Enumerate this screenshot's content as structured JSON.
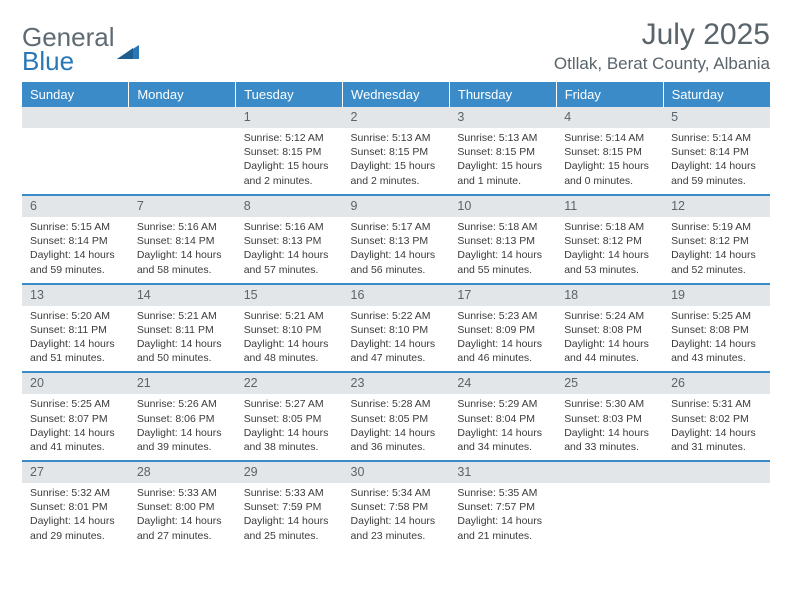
{
  "logo": {
    "line1": "General",
    "line2": "Blue"
  },
  "title": "July 2025",
  "location": "Otllak, Berat County, Albania",
  "colors": {
    "header_bg": "#3b8bc9",
    "header_text": "#ffffff",
    "daynum_bg": "#e3e6e8",
    "daynum_text": "#5a646b",
    "rule": "#3b8bc9",
    "logo_gray": "#5f6b72",
    "logo_blue": "#2a77b8"
  },
  "weekdays": [
    "Sunday",
    "Monday",
    "Tuesday",
    "Wednesday",
    "Thursday",
    "Friday",
    "Saturday"
  ],
  "weeks": [
    [
      null,
      null,
      {
        "n": "1",
        "sr": "Sunrise: 5:12 AM",
        "ss": "Sunset: 8:15 PM",
        "dl": "Daylight: 15 hours and 2 minutes."
      },
      {
        "n": "2",
        "sr": "Sunrise: 5:13 AM",
        "ss": "Sunset: 8:15 PM",
        "dl": "Daylight: 15 hours and 2 minutes."
      },
      {
        "n": "3",
        "sr": "Sunrise: 5:13 AM",
        "ss": "Sunset: 8:15 PM",
        "dl": "Daylight: 15 hours and 1 minute."
      },
      {
        "n": "4",
        "sr": "Sunrise: 5:14 AM",
        "ss": "Sunset: 8:15 PM",
        "dl": "Daylight: 15 hours and 0 minutes."
      },
      {
        "n": "5",
        "sr": "Sunrise: 5:14 AM",
        "ss": "Sunset: 8:14 PM",
        "dl": "Daylight: 14 hours and 59 minutes."
      }
    ],
    [
      {
        "n": "6",
        "sr": "Sunrise: 5:15 AM",
        "ss": "Sunset: 8:14 PM",
        "dl": "Daylight: 14 hours and 59 minutes."
      },
      {
        "n": "7",
        "sr": "Sunrise: 5:16 AM",
        "ss": "Sunset: 8:14 PM",
        "dl": "Daylight: 14 hours and 58 minutes."
      },
      {
        "n": "8",
        "sr": "Sunrise: 5:16 AM",
        "ss": "Sunset: 8:13 PM",
        "dl": "Daylight: 14 hours and 57 minutes."
      },
      {
        "n": "9",
        "sr": "Sunrise: 5:17 AM",
        "ss": "Sunset: 8:13 PM",
        "dl": "Daylight: 14 hours and 56 minutes."
      },
      {
        "n": "10",
        "sr": "Sunrise: 5:18 AM",
        "ss": "Sunset: 8:13 PM",
        "dl": "Daylight: 14 hours and 55 minutes."
      },
      {
        "n": "11",
        "sr": "Sunrise: 5:18 AM",
        "ss": "Sunset: 8:12 PM",
        "dl": "Daylight: 14 hours and 53 minutes."
      },
      {
        "n": "12",
        "sr": "Sunrise: 5:19 AM",
        "ss": "Sunset: 8:12 PM",
        "dl": "Daylight: 14 hours and 52 minutes."
      }
    ],
    [
      {
        "n": "13",
        "sr": "Sunrise: 5:20 AM",
        "ss": "Sunset: 8:11 PM",
        "dl": "Daylight: 14 hours and 51 minutes."
      },
      {
        "n": "14",
        "sr": "Sunrise: 5:21 AM",
        "ss": "Sunset: 8:11 PM",
        "dl": "Daylight: 14 hours and 50 minutes."
      },
      {
        "n": "15",
        "sr": "Sunrise: 5:21 AM",
        "ss": "Sunset: 8:10 PM",
        "dl": "Daylight: 14 hours and 48 minutes."
      },
      {
        "n": "16",
        "sr": "Sunrise: 5:22 AM",
        "ss": "Sunset: 8:10 PM",
        "dl": "Daylight: 14 hours and 47 minutes."
      },
      {
        "n": "17",
        "sr": "Sunrise: 5:23 AM",
        "ss": "Sunset: 8:09 PM",
        "dl": "Daylight: 14 hours and 46 minutes."
      },
      {
        "n": "18",
        "sr": "Sunrise: 5:24 AM",
        "ss": "Sunset: 8:08 PM",
        "dl": "Daylight: 14 hours and 44 minutes."
      },
      {
        "n": "19",
        "sr": "Sunrise: 5:25 AM",
        "ss": "Sunset: 8:08 PM",
        "dl": "Daylight: 14 hours and 43 minutes."
      }
    ],
    [
      {
        "n": "20",
        "sr": "Sunrise: 5:25 AM",
        "ss": "Sunset: 8:07 PM",
        "dl": "Daylight: 14 hours and 41 minutes."
      },
      {
        "n": "21",
        "sr": "Sunrise: 5:26 AM",
        "ss": "Sunset: 8:06 PM",
        "dl": "Daylight: 14 hours and 39 minutes."
      },
      {
        "n": "22",
        "sr": "Sunrise: 5:27 AM",
        "ss": "Sunset: 8:05 PM",
        "dl": "Daylight: 14 hours and 38 minutes."
      },
      {
        "n": "23",
        "sr": "Sunrise: 5:28 AM",
        "ss": "Sunset: 8:05 PM",
        "dl": "Daylight: 14 hours and 36 minutes."
      },
      {
        "n": "24",
        "sr": "Sunrise: 5:29 AM",
        "ss": "Sunset: 8:04 PM",
        "dl": "Daylight: 14 hours and 34 minutes."
      },
      {
        "n": "25",
        "sr": "Sunrise: 5:30 AM",
        "ss": "Sunset: 8:03 PM",
        "dl": "Daylight: 14 hours and 33 minutes."
      },
      {
        "n": "26",
        "sr": "Sunrise: 5:31 AM",
        "ss": "Sunset: 8:02 PM",
        "dl": "Daylight: 14 hours and 31 minutes."
      }
    ],
    [
      {
        "n": "27",
        "sr": "Sunrise: 5:32 AM",
        "ss": "Sunset: 8:01 PM",
        "dl": "Daylight: 14 hours and 29 minutes."
      },
      {
        "n": "28",
        "sr": "Sunrise: 5:33 AM",
        "ss": "Sunset: 8:00 PM",
        "dl": "Daylight: 14 hours and 27 minutes."
      },
      {
        "n": "29",
        "sr": "Sunrise: 5:33 AM",
        "ss": "Sunset: 7:59 PM",
        "dl": "Daylight: 14 hours and 25 minutes."
      },
      {
        "n": "30",
        "sr": "Sunrise: 5:34 AM",
        "ss": "Sunset: 7:58 PM",
        "dl": "Daylight: 14 hours and 23 minutes."
      },
      {
        "n": "31",
        "sr": "Sunrise: 5:35 AM",
        "ss": "Sunset: 7:57 PM",
        "dl": "Daylight: 14 hours and 21 minutes."
      },
      null,
      null
    ]
  ]
}
